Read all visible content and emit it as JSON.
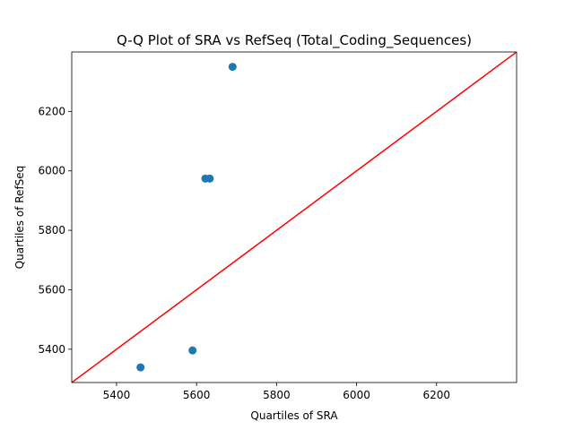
{
  "chart_data": {
    "type": "scatter",
    "title": "Q-Q Plot of SRA vs RefSeq (Total_Coding_Sequences)",
    "xlabel": "Quartiles of SRA",
    "ylabel": "Quartiles of RefSeq",
    "xlim": [
      5288,
      6400
    ],
    "ylim": [
      5288,
      6400
    ],
    "xticks": [
      5400,
      5600,
      5800,
      6000,
      6200
    ],
    "yticks": [
      5400,
      5600,
      5800,
      6000,
      6200
    ],
    "grid": false,
    "points": [
      {
        "x": 5460,
        "y": 5339
      },
      {
        "x": 5590,
        "y": 5396
      },
      {
        "x": 5622,
        "y": 5974
      },
      {
        "x": 5633,
        "y": 5974
      },
      {
        "x": 5690,
        "y": 6350
      }
    ],
    "reference_line": {
      "from": [
        5288,
        5288
      ],
      "to": [
        6400,
        6400
      ]
    },
    "colors": {
      "points": "#1f77b4",
      "reference_line": "#ff0000",
      "axes": "#000000"
    }
  }
}
